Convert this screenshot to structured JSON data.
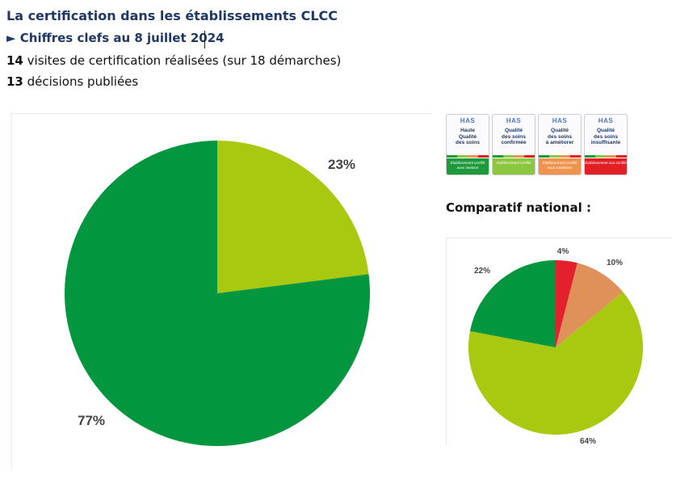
{
  "header": {
    "title": "La certification dans les établissements CLCC",
    "subtitle": "► Chiffres clefs au 8 juillet 2024",
    "stat1_value": "14",
    "stat1_text": " visites de certification réalisées (sur 18 démarches)",
    "stat2_value": "13",
    "stat2_text": " décisions publiées"
  },
  "badges": [
    {
      "logo": "HAS",
      "label": "Haute\nQualité\ndes soins",
      "foot": "Établissement certifié avec mention",
      "color": "#1e9a3c"
    },
    {
      "logo": "HAS",
      "label": "Qualité\ndes soins\nconfirmée",
      "foot": "Établissement certifié",
      "color": "#8dc63f"
    },
    {
      "logo": "HAS",
      "label": "Qualité\ndes soins\nà améliorer",
      "foot": "Établissement certifié sous conditions",
      "color": "#f0934e"
    },
    {
      "logo": "HAS",
      "label": "Qualité\ndes soins\ninsuffisante",
      "foot": "Établissement non certifié",
      "color": "#e31f26"
    }
  ],
  "comparatif_label": "Comparatif national :",
  "chart_data": [
    {
      "type": "pie",
      "title": "",
      "labels": [
        "23%",
        "77%"
      ],
      "values": [
        23,
        77
      ],
      "colors": [
        "#a8c90f",
        "#02963f"
      ]
    },
    {
      "type": "pie",
      "title": "Comparatif national :",
      "labels": [
        "4%",
        "10%",
        "64%",
        "22%"
      ],
      "values": [
        4,
        10,
        64,
        22
      ],
      "colors": [
        "#e3202b",
        "#e0915a",
        "#a8c90f",
        "#02963f"
      ]
    }
  ]
}
